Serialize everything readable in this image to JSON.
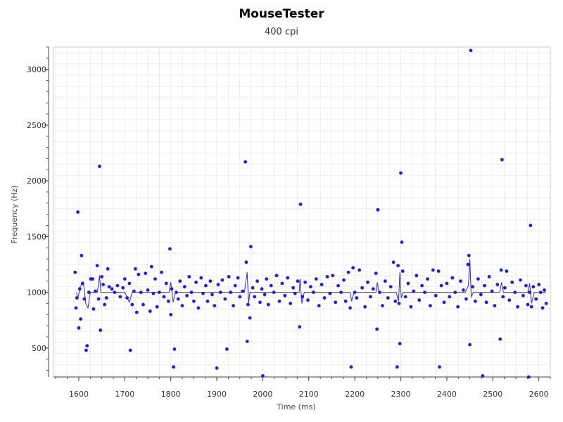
{
  "chart_data": {
    "type": "scatter",
    "title": "MouseTester",
    "subtitle": "400 cpi",
    "xlabel": "Time (ms)",
    "ylabel": "Frequency (Hz)",
    "xlim": [
      1545,
      2625
    ],
    "ylim": [
      240,
      3200
    ],
    "xticks": [
      1600,
      1700,
      1800,
      1900,
      2000,
      2100,
      2200,
      2300,
      2400,
      2500,
      2600
    ],
    "yticks": [
      500,
      1000,
      1500,
      2000,
      2500,
      3000
    ],
    "grid": true,
    "colors": {
      "points": "#1a1aff",
      "line": "#2a2ad8",
      "grid": "#ececec",
      "axis": "#444444"
    },
    "series": [
      {
        "points": [
          [
            1592,
            1180
          ],
          [
            1594,
            860
          ],
          [
            1596,
            950
          ],
          [
            1598,
            1720
          ],
          [
            1600,
            680
          ],
          [
            1602,
            1030
          ],
          [
            1604,
            760
          ],
          [
            1606,
            1330
          ],
          [
            1608,
            1080
          ],
          [
            1612,
            940
          ],
          [
            1616,
            480
          ],
          [
            1618,
            520
          ],
          [
            1622,
            1000
          ],
          [
            1626,
            1120
          ],
          [
            1630,
            1120
          ],
          [
            1632,
            850
          ],
          [
            1636,
            1010
          ],
          [
            1640,
            1240
          ],
          [
            1643,
            940
          ],
          [
            1645,
            2130
          ],
          [
            1647,
            660
          ],
          [
            1650,
            1140
          ],
          [
            1653,
            1070
          ],
          [
            1656,
            890
          ],
          [
            1660,
            950
          ],
          [
            1663,
            1210
          ],
          [
            1666,
            1050
          ],
          [
            1672,
            1030
          ],
          [
            1678,
            1000
          ],
          [
            1684,
            1060
          ],
          [
            1690,
            960
          ],
          [
            1696,
            1040
          ],
          [
            1700,
            1120
          ],
          [
            1705,
            950
          ],
          [
            1710,
            1080
          ],
          [
            1712,
            480
          ],
          [
            1716,
            890
          ],
          [
            1720,
            1010
          ],
          [
            1723,
            1210
          ],
          [
            1726,
            820
          ],
          [
            1730,
            1160
          ],
          [
            1735,
            1000
          ],
          [
            1740,
            890
          ],
          [
            1745,
            1170
          ],
          [
            1750,
            1020
          ],
          [
            1755,
            830
          ],
          [
            1758,
            1230
          ],
          [
            1762,
            990
          ],
          [
            1766,
            1120
          ],
          [
            1770,
            870
          ],
          [
            1775,
            1000
          ],
          [
            1780,
            1180
          ],
          [
            1785,
            960
          ],
          [
            1790,
            1080
          ],
          [
            1795,
            920
          ],
          [
            1798,
            1390
          ],
          [
            1800,
            800
          ],
          [
            1802,
            1030
          ],
          [
            1806,
            330
          ],
          [
            1808,
            490
          ],
          [
            1812,
            1000
          ],
          [
            1816,
            940
          ],
          [
            1820,
            1100
          ],
          [
            1825,
            880
          ],
          [
            1830,
            1050
          ],
          [
            1835,
            970
          ],
          [
            1840,
            1140
          ],
          [
            1845,
            1000
          ],
          [
            1850,
            920
          ],
          [
            1855,
            1090
          ],
          [
            1860,
            860
          ],
          [
            1866,
            1130
          ],
          [
            1870,
            990
          ],
          [
            1876,
            1060
          ],
          [
            1880,
            920
          ],
          [
            1886,
            1100
          ],
          [
            1890,
            980
          ],
          [
            1895,
            880
          ],
          [
            1900,
            320
          ],
          [
            1903,
            1070
          ],
          [
            1908,
            1000
          ],
          [
            1912,
            1110
          ],
          [
            1918,
            940
          ],
          [
            1922,
            490
          ],
          [
            1926,
            1140
          ],
          [
            1930,
            1000
          ],
          [
            1936,
            880
          ],
          [
            1940,
            1060
          ],
          [
            1946,
            1130
          ],
          [
            1950,
            960
          ],
          [
            1956,
            1010
          ],
          [
            1962,
            2170
          ],
          [
            1964,
            1270
          ],
          [
            1966,
            560
          ],
          [
            1968,
            890
          ],
          [
            1972,
            770
          ],
          [
            1974,
            1410
          ],
          [
            1978,
            1040
          ],
          [
            1982,
            960
          ],
          [
            1988,
            1100
          ],
          [
            1994,
            910
          ],
          [
            1998,
            1030
          ],
          [
            2000,
            250
          ],
          [
            2004,
            980
          ],
          [
            2008,
            1120
          ],
          [
            2012,
            890
          ],
          [
            2018,
            1060
          ],
          [
            2024,
            1000
          ],
          [
            2030,
            1150
          ],
          [
            2036,
            920
          ],
          [
            2042,
            1080
          ],
          [
            2048,
            970
          ],
          [
            2054,
            1130
          ],
          [
            2060,
            900
          ],
          [
            2066,
            1040
          ],
          [
            2070,
            990
          ],
          [
            2076,
            1100
          ],
          [
            2080,
            690
          ],
          [
            2082,
            1790
          ],
          [
            2086,
            960
          ],
          [
            2092,
            1090
          ],
          [
            2098,
            930
          ],
          [
            2104,
            1050
          ],
          [
            2110,
            1000
          ],
          [
            2116,
            1120
          ],
          [
            2122,
            880
          ],
          [
            2128,
            1070
          ],
          [
            2134,
            950
          ],
          [
            2140,
            1140
          ],
          [
            2146,
            990
          ],
          [
            2152,
            1150
          ],
          [
            2158,
            910
          ],
          [
            2164,
            1060
          ],
          [
            2170,
            1000
          ],
          [
            2176,
            1110
          ],
          [
            2180,
            920
          ],
          [
            2186,
            1180
          ],
          [
            2190,
            860
          ],
          [
            2192,
            330
          ],
          [
            2196,
            1220
          ],
          [
            2200,
            1000
          ],
          [
            2204,
            950
          ],
          [
            2210,
            1200
          ],
          [
            2216,
            1040
          ],
          [
            2222,
            870
          ],
          [
            2228,
            1090
          ],
          [
            2234,
            960
          ],
          [
            2240,
            1030
          ],
          [
            2246,
            1170
          ],
          [
            2248,
            670
          ],
          [
            2250,
            1740
          ],
          [
            2254,
            1000
          ],
          [
            2260,
            880
          ],
          [
            2266,
            1100
          ],
          [
            2272,
            950
          ],
          [
            2278,
            1050
          ],
          [
            2284,
            1270
          ],
          [
            2288,
            920
          ],
          [
            2292,
            330
          ],
          [
            2294,
            1240
          ],
          [
            2296,
            900
          ],
          [
            2298,
            540
          ],
          [
            2300,
            2070
          ],
          [
            2302,
            1450
          ],
          [
            2304,
            1190
          ],
          [
            2310,
            960
          ],
          [
            2316,
            1080
          ],
          [
            2322,
            870
          ],
          [
            2328,
            1010
          ],
          [
            2334,
            1150
          ],
          [
            2340,
            930
          ],
          [
            2346,
            1060
          ],
          [
            2352,
            1000
          ],
          [
            2358,
            1120
          ],
          [
            2364,
            880
          ],
          [
            2370,
            1200
          ],
          [
            2376,
            970
          ],
          [
            2382,
            1190
          ],
          [
            2384,
            330
          ],
          [
            2388,
            1060
          ],
          [
            2394,
            910
          ],
          [
            2400,
            1080
          ],
          [
            2406,
            960
          ],
          [
            2412,
            1130
          ],
          [
            2418,
            1000
          ],
          [
            2424,
            870
          ],
          [
            2430,
            1100
          ],
          [
            2436,
            1020
          ],
          [
            2442,
            940
          ],
          [
            2446,
            1250
          ],
          [
            2448,
            1330
          ],
          [
            2450,
            530
          ],
          [
            2452,
            3170
          ],
          [
            2456,
            1050
          ],
          [
            2462,
            920
          ],
          [
            2468,
            1120
          ],
          [
            2474,
            980
          ],
          [
            2478,
            250
          ],
          [
            2482,
            1060
          ],
          [
            2486,
            910
          ],
          [
            2492,
            1140
          ],
          [
            2498,
            1010
          ],
          [
            2504,
            880
          ],
          [
            2510,
            1070
          ],
          [
            2516,
            580
          ],
          [
            2518,
            1200
          ],
          [
            2520,
            2190
          ],
          [
            2522,
            960
          ],
          [
            2526,
            1040
          ],
          [
            2530,
            1190
          ],
          [
            2536,
            930
          ],
          [
            2542,
            1090
          ],
          [
            2548,
            1000
          ],
          [
            2554,
            870
          ],
          [
            2560,
            1110
          ],
          [
            2566,
            970
          ],
          [
            2572,
            1060
          ],
          [
            2576,
            890
          ],
          [
            2578,
            240
          ],
          [
            2580,
            1000
          ],
          [
            2582,
            1600
          ],
          [
            2584,
            870
          ],
          [
            2588,
            1050
          ],
          [
            2594,
            940
          ],
          [
            2600,
            1070
          ],
          [
            2604,
            1000
          ],
          [
            2608,
            860
          ],
          [
            2612,
            1020
          ],
          [
            2616,
            900
          ]
        ]
      }
    ],
    "line": [
      [
        1595,
        1000
      ],
      [
        1598,
        940
      ],
      [
        1603,
        1050
      ],
      [
        1610,
        1090
      ],
      [
        1615,
        900
      ],
      [
        1620,
        860
      ],
      [
        1625,
        1000
      ],
      [
        1640,
        1000
      ],
      [
        1643,
        1070
      ],
      [
        1645,
        1150
      ],
      [
        1648,
        1000
      ],
      [
        1660,
        1000
      ],
      [
        1700,
        1000
      ],
      [
        1710,
        910
      ],
      [
        1716,
        1000
      ],
      [
        1760,
        1000
      ],
      [
        1796,
        1000
      ],
      [
        1800,
        1090
      ],
      [
        1805,
        910
      ],
      [
        1810,
        1000
      ],
      [
        1900,
        1000
      ],
      [
        1920,
        1000
      ],
      [
        1960,
        1000
      ],
      [
        1963,
        1090
      ],
      [
        1966,
        1180
      ],
      [
        1969,
        900
      ],
      [
        1972,
        1000
      ],
      [
        2040,
        1000
      ],
      [
        2079,
        1000
      ],
      [
        2081,
        1120
      ],
      [
        2085,
        900
      ],
      [
        2090,
        1000
      ],
      [
        2190,
        1000
      ],
      [
        2193,
        920
      ],
      [
        2198,
        1000
      ],
      [
        2246,
        1000
      ],
      [
        2249,
        1090
      ],
      [
        2252,
        1000
      ],
      [
        2290,
        1000
      ],
      [
        2295,
        920
      ],
      [
        2298,
        1180
      ],
      [
        2301,
        950
      ],
      [
        2305,
        1000
      ],
      [
        2440,
        1000
      ],
      [
        2447,
        1060
      ],
      [
        2450,
        1300
      ],
      [
        2453,
        960
      ],
      [
        2458,
        1000
      ],
      [
        2515,
        1000
      ],
      [
        2519,
        1090
      ],
      [
        2523,
        1000
      ],
      [
        2576,
        1000
      ],
      [
        2580,
        1080
      ],
      [
        2584,
        900
      ],
      [
        2590,
        1000
      ],
      [
        2616,
        1000
      ]
    ]
  }
}
